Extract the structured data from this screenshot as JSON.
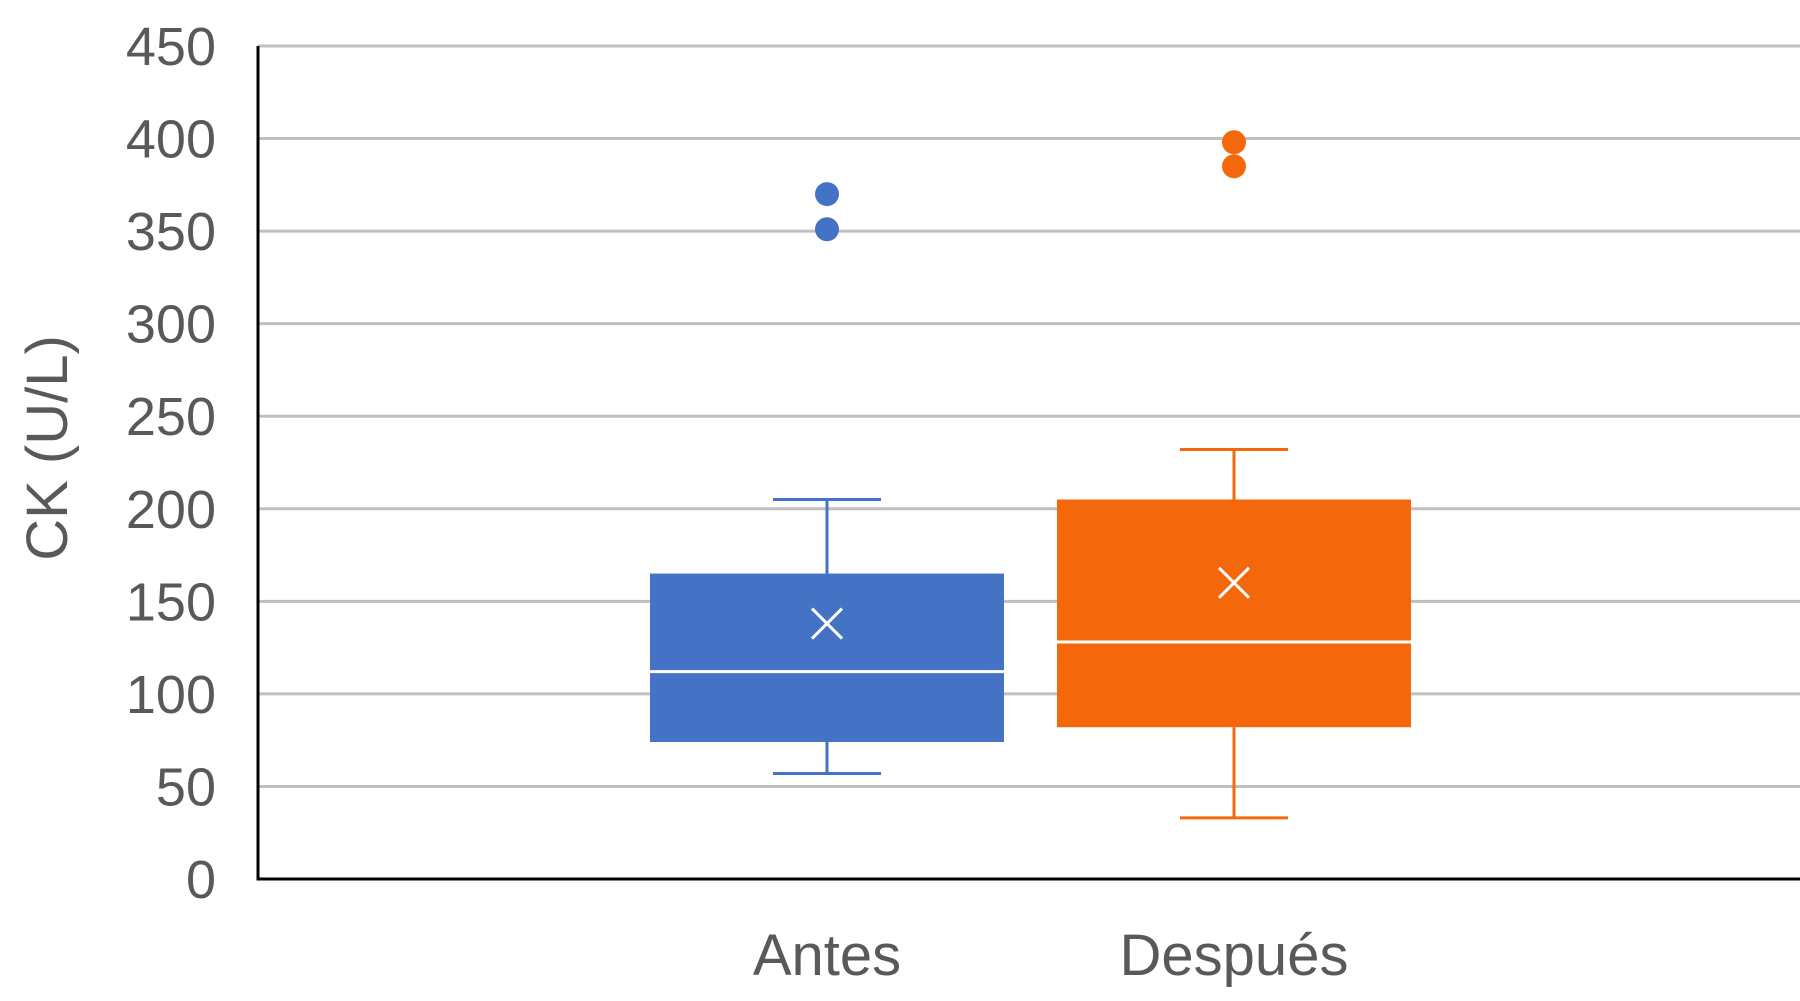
{
  "chart_data": {
    "type": "boxplot",
    "ylabel": "CK (U/L)",
    "xlabel": "",
    "ylim": [
      0,
      450
    ],
    "yticks": [
      0,
      50,
      100,
      150,
      200,
      250,
      300,
      350,
      400,
      450
    ],
    "grid": true,
    "categories": [
      "Antes",
      "Después"
    ],
    "series": [
      {
        "category": "Antes",
        "color": "#4472C4",
        "whisker_low": 57,
        "q1": 74,
        "median": 112,
        "q3": 165,
        "whisker_high": 205,
        "mean": 138,
        "outliers": [
          351,
          370
        ]
      },
      {
        "category": "Después",
        "color": "#F4680B",
        "whisker_low": 33,
        "q1": 82,
        "median": 128,
        "q3": 205,
        "whisker_high": 232,
        "mean": 160,
        "outliers": [
          385,
          398
        ]
      }
    ]
  }
}
